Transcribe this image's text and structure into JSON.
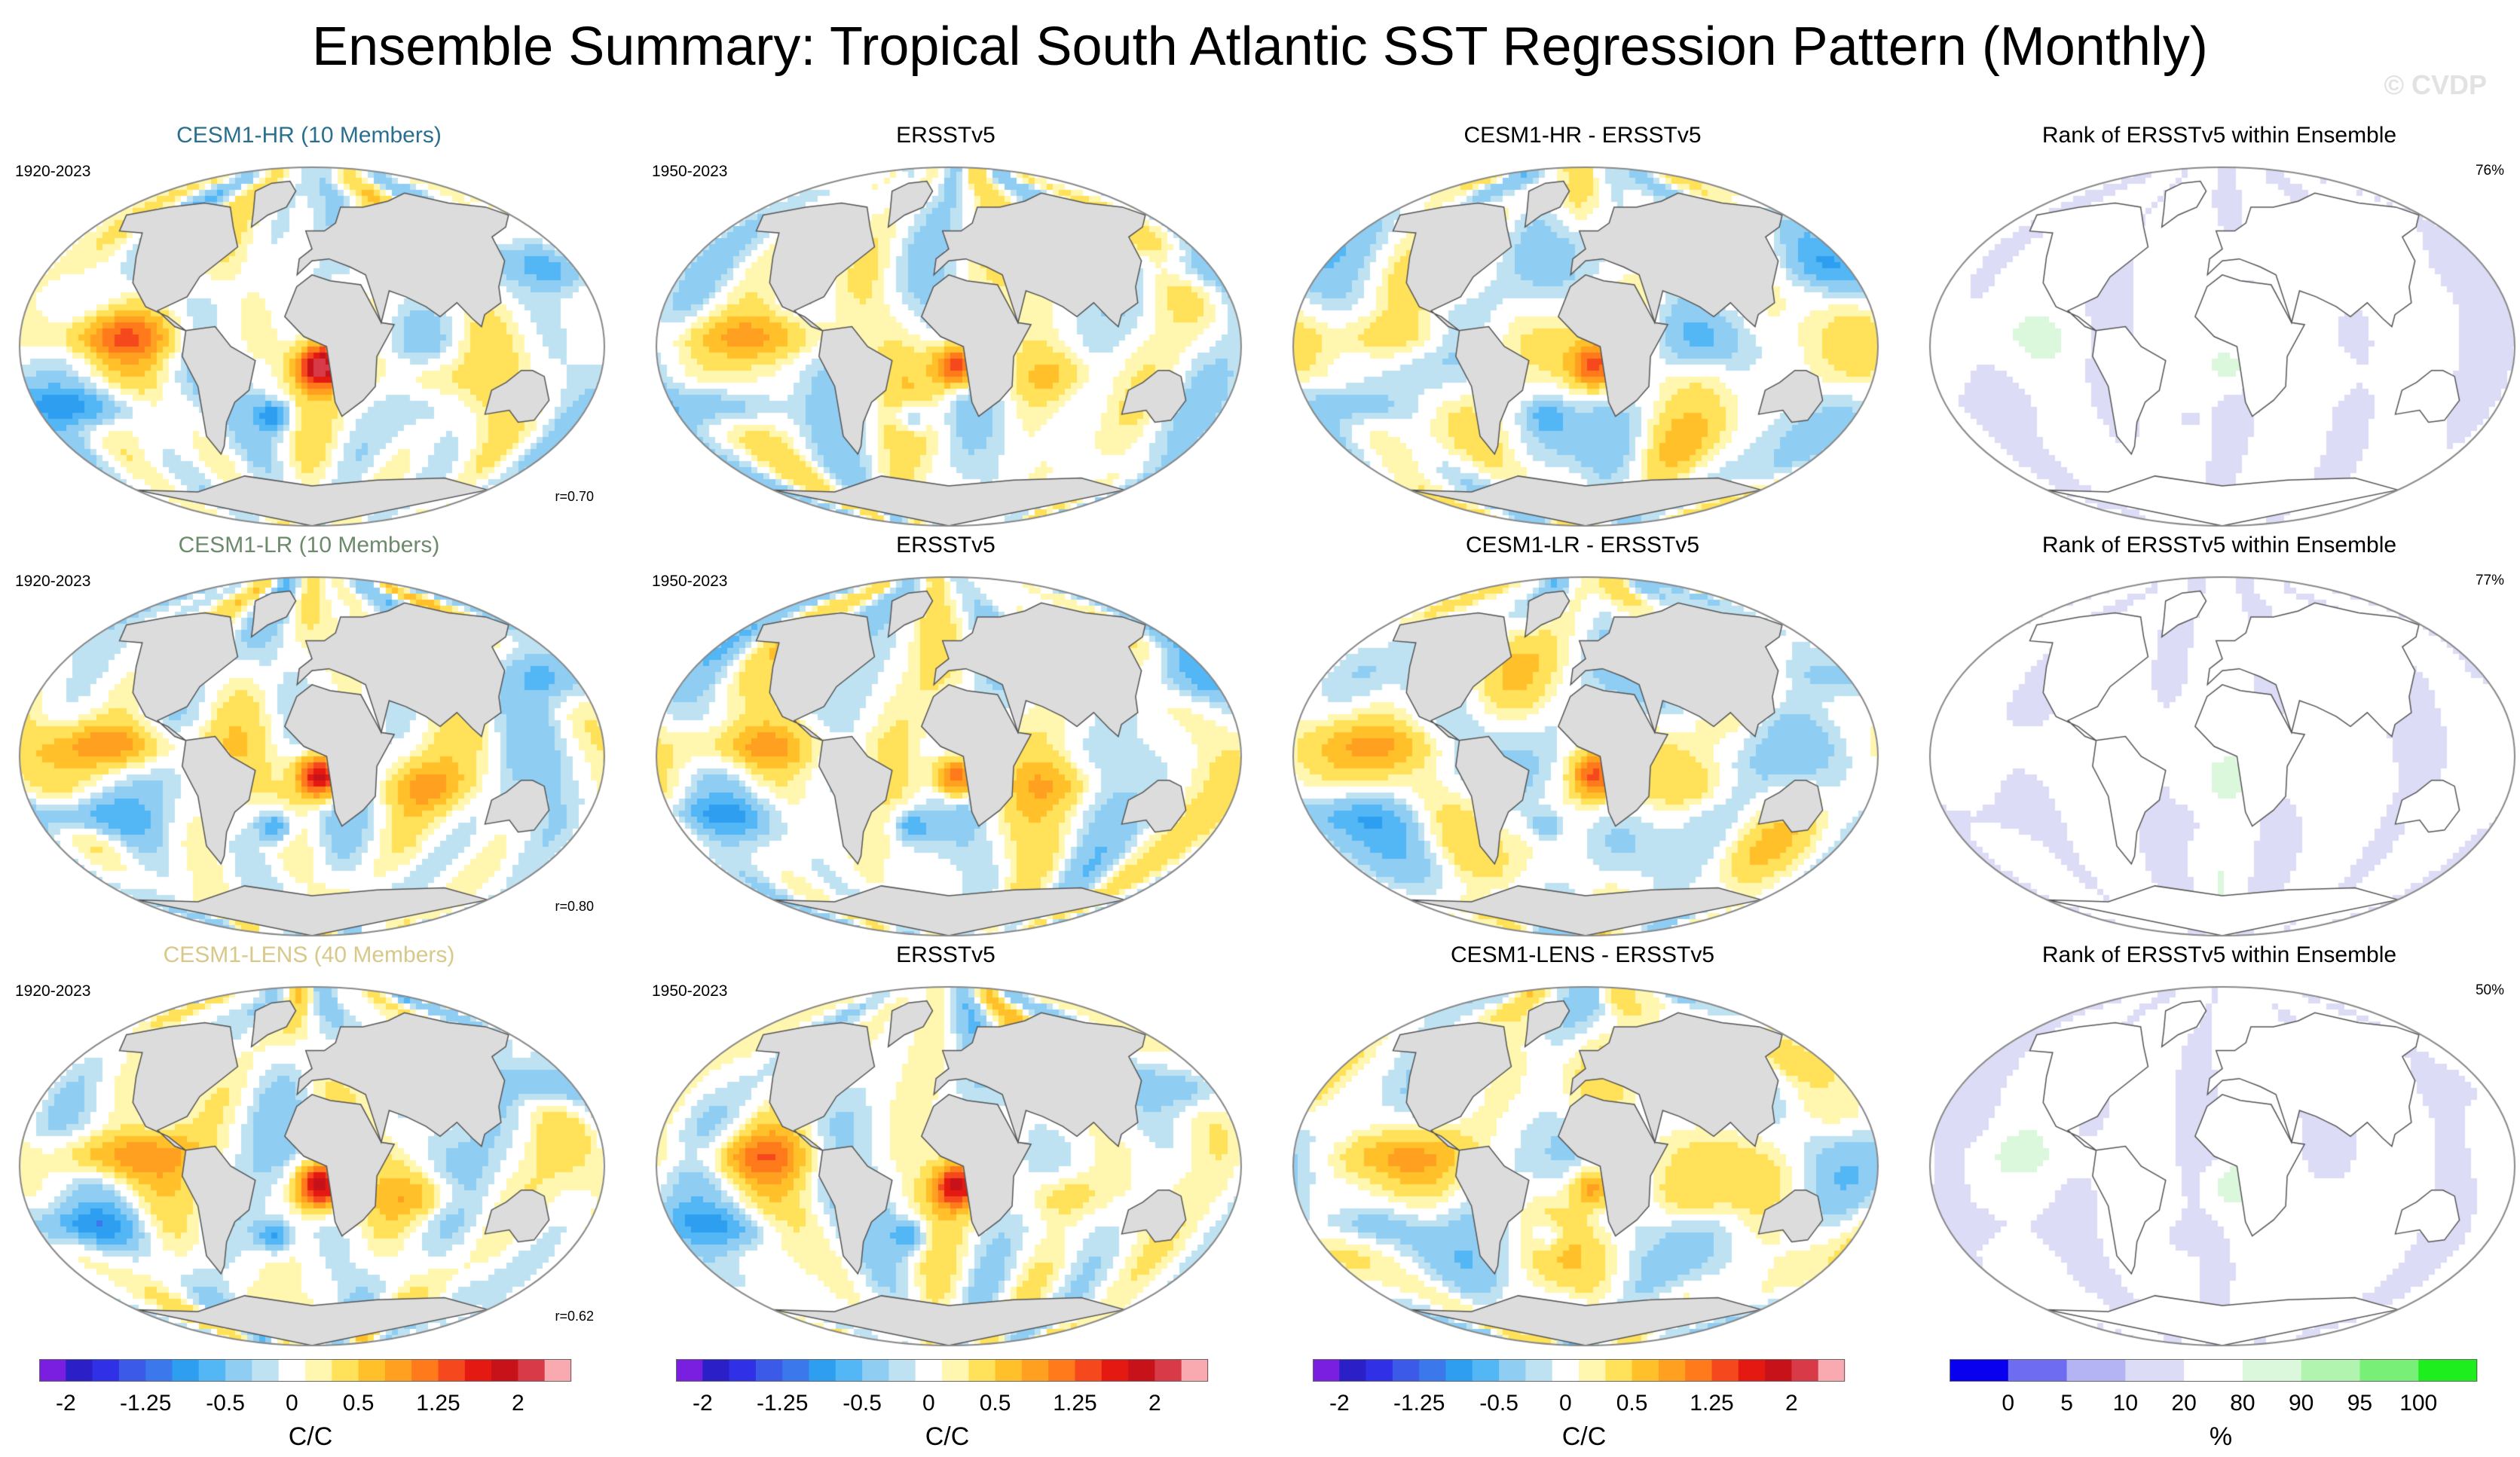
{
  "header": {
    "title": "Ensemble Summary: Tropical South Atlantic SST Regression Pattern (Monthly)",
    "watermark": "© CVDP"
  },
  "rows": [
    {
      "ensemble": {
        "title": "CESM1-HR (10 Members)",
        "title_color": "#2a6f8f",
        "years": "1920-2023",
        "r": "r=0.70"
      },
      "obs": {
        "title": "ERSSTv5",
        "years": "1950-2023"
      },
      "diff": {
        "title": "CESM1-HR - ERSSTv5"
      },
      "rank": {
        "title": "Rank of ERSSTv5 within Ensemble",
        "percent": "76%"
      }
    },
    {
      "ensemble": {
        "title": "CESM1-LR (10 Members)",
        "title_color": "#6c8a6c",
        "years": "1920-2023",
        "r": "r=0.80"
      },
      "obs": {
        "title": "ERSSTv5",
        "years": "1950-2023"
      },
      "diff": {
        "title": "CESM1-LR - ERSSTv5"
      },
      "rank": {
        "title": "Rank of ERSSTv5 within Ensemble",
        "percent": "77%"
      }
    },
    {
      "ensemble": {
        "title": "CESM1-LENS (40 Members)",
        "title_color": "#d8c88a",
        "years": "1920-2023",
        "r": "r=0.62"
      },
      "obs": {
        "title": "ERSSTv5",
        "years": "1950-2023"
      },
      "diff": {
        "title": "CESM1-LENS - ERSSTv5"
      },
      "rank": {
        "title": "Rank of ERSSTv5 within Ensemble",
        "percent": "50%"
      }
    }
  ],
  "chart_data": {
    "type": "heatmap",
    "description_type": "filled contour maps (global Robinson projection)",
    "regression_colorbar": {
      "unit": "C/C",
      "tick_labels": [
        "-2",
        "-1.25",
        "-0.5",
        "0",
        "0.5",
        "1.25",
        "2"
      ],
      "levels": [
        -2,
        -1.75,
        -1.5,
        -1.25,
        -1,
        -0.75,
        -0.5,
        -0.25,
        -0.1,
        0.1,
        0.25,
        0.5,
        0.75,
        1,
        1.25,
        1.5,
        1.75,
        2
      ],
      "colors": [
        "#7a1fe0",
        "#2b1fc8",
        "#3030e6",
        "#3b5ae8",
        "#3a78ec",
        "#2e9ff0",
        "#53b6f5",
        "#8fcdf3",
        "#bfe2f2",
        "#ffffff",
        "#fff7b0",
        "#ffe15a",
        "#ffc02a",
        "#ffa020",
        "#ff7a1a",
        "#f5481c",
        "#e41a12",
        "#c8121a",
        "#d83a48",
        "#f8aab0"
      ]
    },
    "rank_colorbar": {
      "unit": "%",
      "tick_labels": [
        "0",
        "5",
        "10",
        "20",
        "80",
        "90",
        "95",
        "100"
      ],
      "levels": [
        0,
        5,
        10,
        20,
        80,
        90,
        95,
        100
      ],
      "colors": [
        "#0a00f0",
        "#6e6cf0",
        "#b4b4f4",
        "#dcdcf6",
        "#ffffff",
        "#dcf8dc",
        "#b0f4b0",
        "#78f078",
        "#1eee1e"
      ]
    }
  }
}
